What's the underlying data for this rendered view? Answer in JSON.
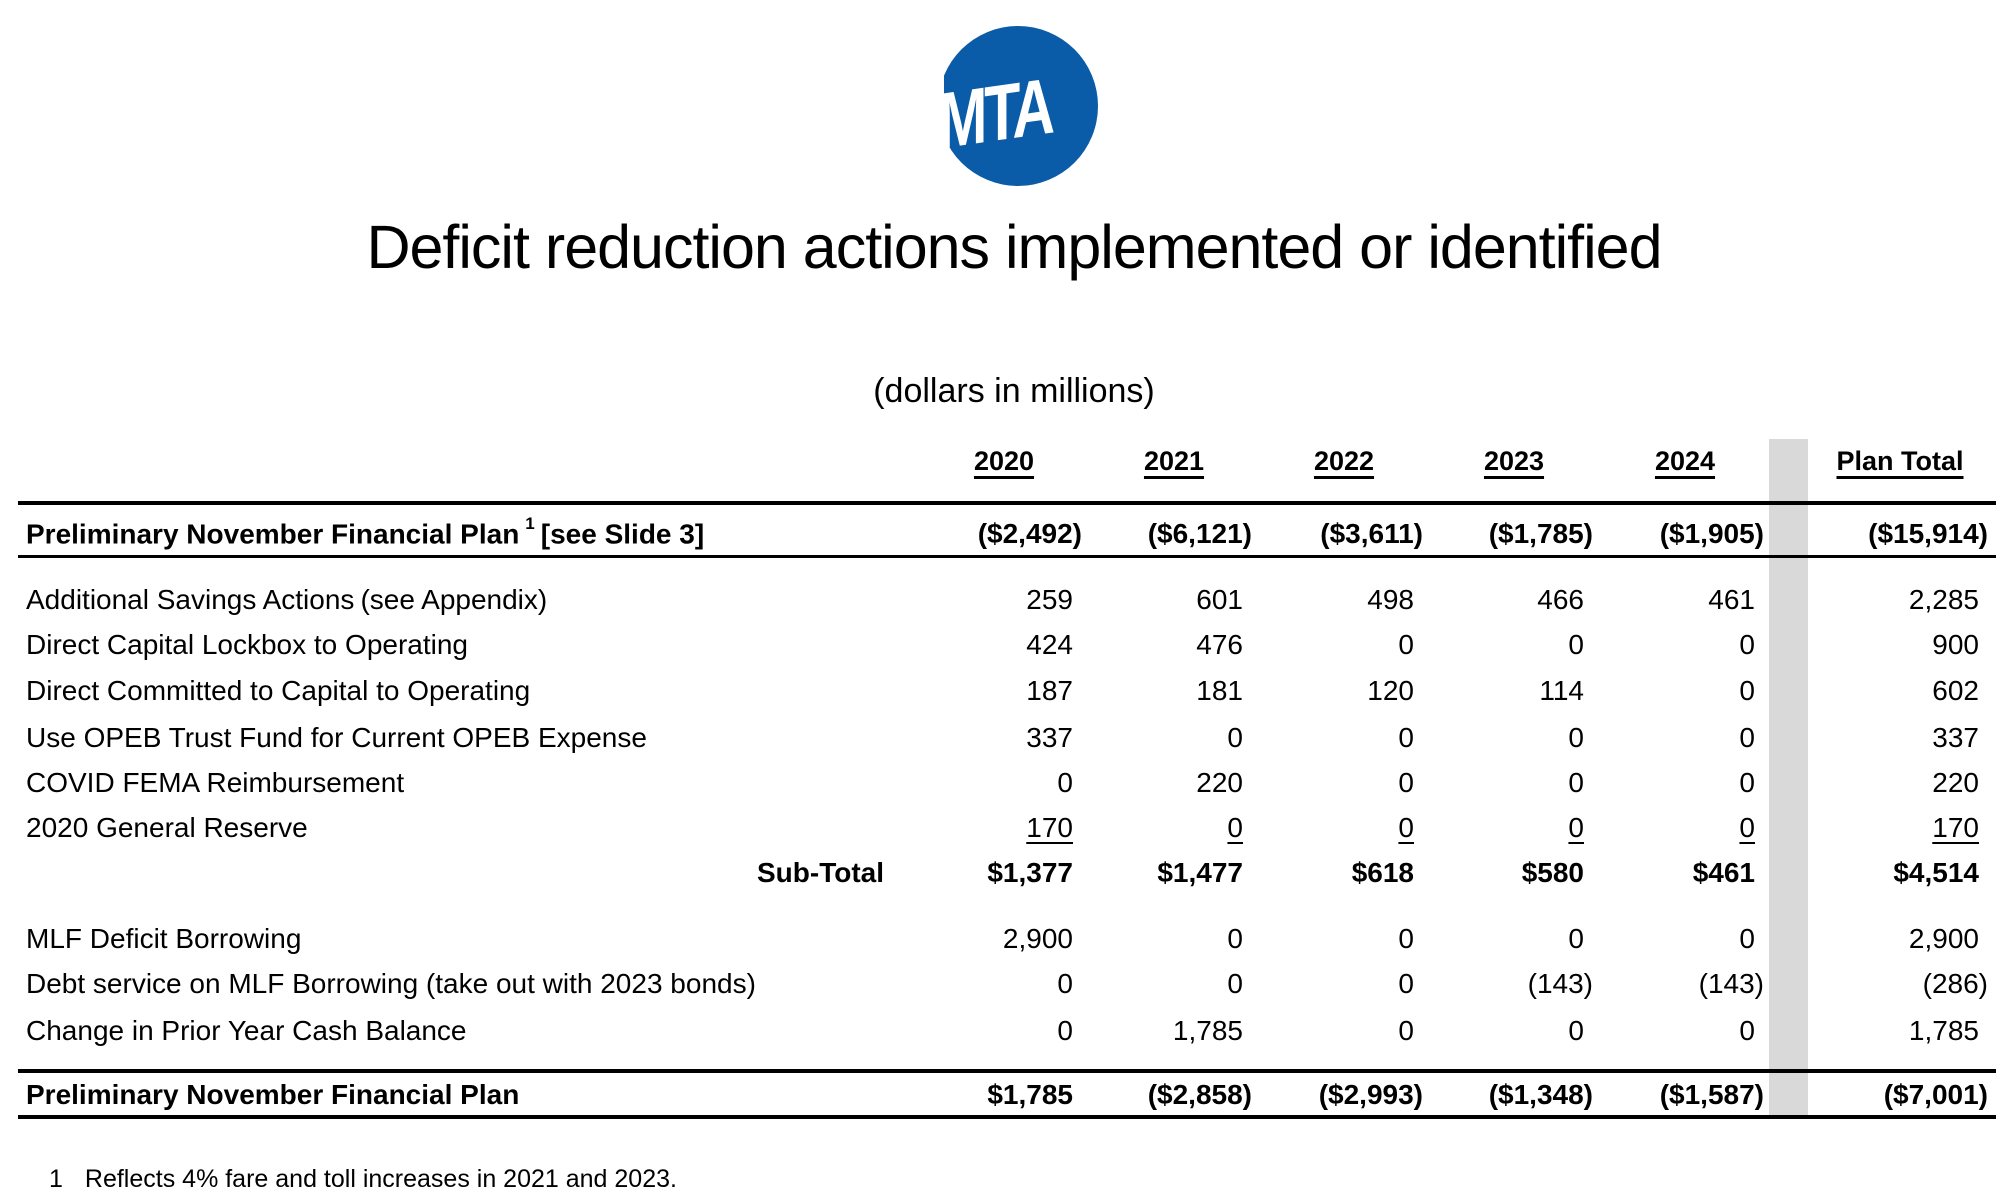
{
  "logo": {
    "text": "MTA",
    "color": "#0b5ca8"
  },
  "title": "Deficit reduction actions implemented or identified",
  "subtitle": "(dollars in millions)",
  "columns": [
    "2020",
    "2021",
    "2022",
    "2023",
    "2024",
    "Plan Total"
  ],
  "highlight_color": "#d9d9d9",
  "rows": [
    {
      "label": "Preliminary November Financial Plan",
      "sup": "1",
      "label_suffix": "[see Slide 3]",
      "bold": true,
      "values": [
        "($2,492)",
        "($6,121)",
        "($3,611)",
        "($1,785)",
        "($1,905)",
        "($15,914)"
      ]
    },
    {
      "label": "Additional Savings Actions",
      "label_suffix": "(see Appendix)",
      "values": [
        "259",
        "601",
        "498",
        "466",
        "461",
        "2,285"
      ]
    },
    {
      "label": "Direct Capital Lockbox to Operating",
      "values": [
        "424",
        "476",
        "0",
        "0",
        "0",
        "900"
      ]
    },
    {
      "label": "Direct Committed to Capital to Operating",
      "values": [
        "187",
        "181",
        "120",
        "114",
        "0",
        "602"
      ]
    },
    {
      "label": "Use OPEB Trust Fund for Current OPEB Expense",
      "values": [
        "337",
        "0",
        "0",
        "0",
        "0",
        "337"
      ]
    },
    {
      "label": "COVID FEMA Reimbursement",
      "values": [
        "0",
        "220",
        "0",
        "0",
        "0",
        "220"
      ]
    },
    {
      "label": "2020 General Reserve",
      "underline": true,
      "values": [
        "170",
        "0",
        "0",
        "0",
        "0",
        "170"
      ]
    },
    {
      "label": "Sub-Total",
      "bold": true,
      "align": "right",
      "values": [
        "$1,377",
        "$1,477",
        "$618",
        "$580",
        "$461",
        "$4,514"
      ]
    },
    {
      "label": "MLF Deficit Borrowing",
      "values": [
        "2,900",
        "0",
        "0",
        "0",
        "0",
        "2,900"
      ]
    },
    {
      "label": "Debt service on MLF Borrowing (take out with 2023 bonds)",
      "values": [
        "0",
        "0",
        "0",
        "(143)",
        "(143)",
        "(286)"
      ]
    },
    {
      "label": "Change in Prior Year Cash Balance",
      "values": [
        "0",
        "1,785",
        "0",
        "0",
        "0",
        "1,785"
      ]
    },
    {
      "label": "Preliminary November Financial Plan",
      "bold": true,
      "values": [
        "$1,785",
        "($2,858)",
        "($2,993)",
        "($1,348)",
        "($1,587)",
        "($7,001)"
      ]
    }
  ],
  "footnote": {
    "number": "1",
    "text": "Reflects 4% fare and toll increases in 2021 and 2023."
  }
}
